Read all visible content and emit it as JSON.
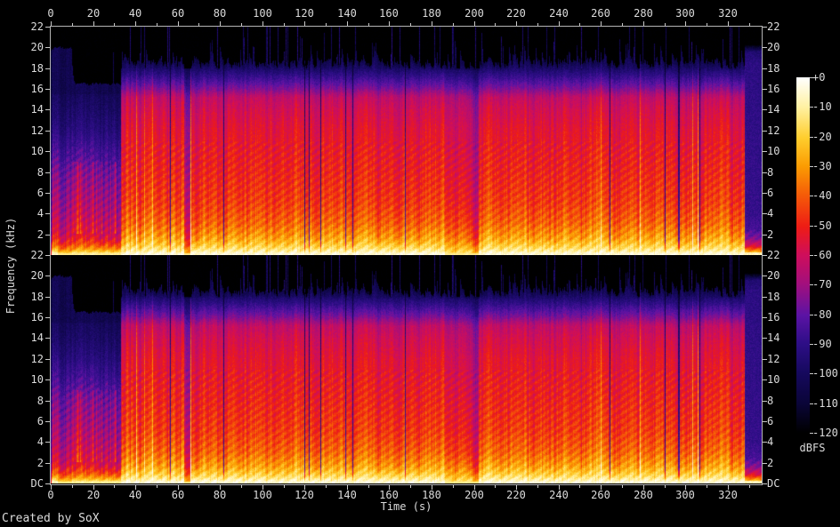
{
  "meta": {
    "footer": "Created by SoX",
    "background": "#000000",
    "axis_color": "#b4b4b4",
    "text_color": "#dcdcdc"
  },
  "chart_data": {
    "type": "heatmap",
    "subtype": "stereo-audio-spectrogram",
    "title": "",
    "xlabel": "Time (s)",
    "ylabel": "Frequency (kHz)",
    "x_range_s": [
      0,
      336
    ],
    "x_major_ticks": [
      0,
      20,
      40,
      60,
      80,
      100,
      120,
      140,
      160,
      180,
      200,
      220,
      240,
      260,
      280,
      300,
      320
    ],
    "x_minor_step": 10,
    "y_range_khz": [
      0,
      22
    ],
    "y_ticks_khz": [
      22,
      20,
      18,
      16,
      14,
      12,
      10,
      8,
      6,
      4,
      2
    ],
    "y_bottom_label": "DC",
    "grid": false,
    "channels": [
      {
        "name": "channel-1",
        "description": "upper spectrogram, 0-22 kHz"
      },
      {
        "name": "channel-2",
        "description": "lower spectrogram, 0-22 kHz, nearly identical to channel 1"
      }
    ],
    "colorbar": {
      "label": "dBFS",
      "ticks": [
        "+0",
        "-10",
        "-20",
        "-30",
        "-40",
        "-50",
        "-60",
        "-70",
        "-80",
        "-90",
        "-100",
        "-110",
        "-120"
      ],
      "range_db": [
        0,
        -120
      ],
      "position": "right"
    },
    "palette": [
      {
        "v": 0.0,
        "c": "#000000"
      },
      {
        "v": 0.083,
        "c": "#0a0538"
      },
      {
        "v": 0.17,
        "c": "#16095e"
      },
      {
        "v": 0.25,
        "c": "#2d0e86"
      },
      {
        "v": 0.33,
        "c": "#5b13a4"
      },
      {
        "v": 0.42,
        "c": "#a30f7c"
      },
      {
        "v": 0.5,
        "c": "#cf0e5b"
      },
      {
        "v": 0.58,
        "c": "#ee1c15"
      },
      {
        "v": 0.67,
        "c": "#f55c08"
      },
      {
        "v": 0.75,
        "c": "#fb9c02"
      },
      {
        "v": 0.83,
        "c": "#ffce2e"
      },
      {
        "v": 0.917,
        "c": "#fff1a3"
      },
      {
        "v": 1.0,
        "c": "#ffffff"
      }
    ],
    "segments": [
      {
        "t0": 0,
        "t1": 3,
        "kind": "intro",
        "haze_khz": 20.0,
        "level": 1.0,
        "note": "opening burst, purple haze to 20 kHz, hot low end"
      },
      {
        "t0": 3,
        "t1": 10,
        "kind": "intro",
        "haze_khz": 20.0,
        "level": 0.9,
        "note": "quiet intro, streaky purple haze to 20 kHz"
      },
      {
        "t0": 10,
        "t1": 33,
        "kind": "intro",
        "haze_khz": 16.5,
        "level": 0.95,
        "note": "intro capped near 16.5 kHz, pink mid-band texture"
      },
      {
        "t0": 33,
        "t1": 63,
        "kind": "full",
        "haze_khz": 18.5,
        "level": 1.0,
        "note": "full-band music, body to ~16 kHz"
      },
      {
        "t0": 63,
        "t1": 66,
        "kind": "break",
        "haze_khz": 17.5,
        "level": 0.82,
        "note": "brief dip"
      },
      {
        "t0": 66,
        "t1": 186,
        "kind": "full",
        "haze_khz": 18.5,
        "level": 1.0,
        "note": "dense full-band music with transient spikes to 22 kHz"
      },
      {
        "t0": 186,
        "t1": 199,
        "kind": "full",
        "haze_khz": 18.0,
        "level": 0.92,
        "note": "slightly quieter passage"
      },
      {
        "t0": 199,
        "t1": 202,
        "kind": "break",
        "haze_khz": 18.0,
        "level": 0.85,
        "note": "short dip near 200 s"
      },
      {
        "t0": 202,
        "t1": 328,
        "kind": "full",
        "haze_khz": 18.5,
        "level": 1.0,
        "note": "dense full-band music"
      },
      {
        "t0": 328,
        "t1": 336,
        "kind": "outro",
        "haze_khz": 20.0,
        "level": 1.0,
        "note": "abrupt stop; flat purple noise block to ~20 kHz"
      }
    ],
    "transient_line_density": 0.12
  }
}
